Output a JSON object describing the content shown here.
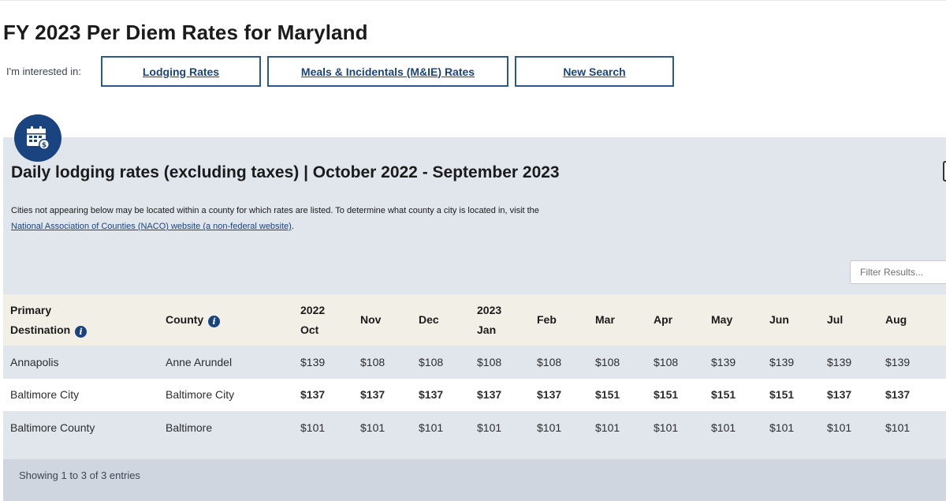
{
  "page": {
    "title": "FY 2023 Per Diem Rates for Maryland"
  },
  "interest": {
    "label": "I'm interested in:",
    "buttons": {
      "lodging": "Lodging Rates",
      "mie": "Meals & Incidentals (M&IE) Rates",
      "new_search": "New Search"
    }
  },
  "panel": {
    "icon": "calendar-dollar-icon",
    "heading": "Daily lodging rates (excluding taxes) | October 2022 - September 2023",
    "note": "Cities not appearing below may be located within a county for which rates are listed. To determine what county a city is located in, visit the",
    "note_link": "National Association of Counties (NACO) website (a non-federal website)",
    "note_end": "."
  },
  "filter": {
    "placeholder": "Filter Results..."
  },
  "table": {
    "headers": {
      "destination_line1": "Primary",
      "destination_line2": "Destination",
      "county": "County",
      "oct_year": "2022",
      "oct": "Oct",
      "nov": "Nov",
      "dec": "Dec",
      "jan_year": "2023",
      "jan": "Jan",
      "feb": "Feb",
      "mar": "Mar",
      "apr": "Apr",
      "may": "May",
      "jun": "Jun",
      "jul": "Jul",
      "aug": "Aug"
    },
    "rows": [
      {
        "destination": "Annapolis",
        "county": "Anne Arundel",
        "rates": [
          "$139",
          "$108",
          "$108",
          "$108",
          "$108",
          "$108",
          "$108",
          "$139",
          "$139",
          "$139",
          "$139"
        ]
      },
      {
        "destination": "Baltimore City",
        "county": "Baltimore City",
        "rates": [
          "$137",
          "$137",
          "$137",
          "$137",
          "$137",
          "$151",
          "$151",
          "$151",
          "$151",
          "$137",
          "$137"
        ]
      },
      {
        "destination": "Baltimore County",
        "county": "Baltimore",
        "rates": [
          "$101",
          "$101",
          "$101",
          "$101",
          "$101",
          "$101",
          "$101",
          "$101",
          "$101",
          "$101",
          "$101"
        ]
      }
    ],
    "footer": "Showing 1 to 3 of 3 entries"
  },
  "colors": {
    "primary": "#1a4480",
    "panel_bg": "#e1e5ec",
    "header_bg": "#f1efe6",
    "footer_bg": "#cfd6df"
  }
}
